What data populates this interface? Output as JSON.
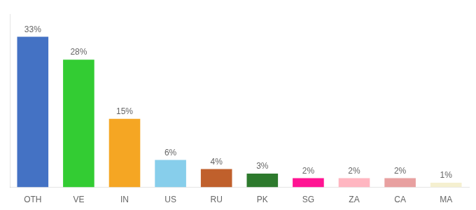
{
  "chart_data": {
    "type": "bar",
    "categories": [
      "OTH",
      "VE",
      "IN",
      "US",
      "RU",
      "PK",
      "SG",
      "ZA",
      "CA",
      "MA"
    ],
    "values": [
      33,
      28,
      15,
      6,
      4,
      3,
      2,
      2,
      2,
      1
    ],
    "value_labels": [
      "33%",
      "28%",
      "15%",
      "6%",
      "4%",
      "3%",
      "2%",
      "2%",
      "2%",
      "1%"
    ],
    "colors": [
      "#4472c4",
      "#33cc33",
      "#f5a623",
      "#87ceeb",
      "#c0602c",
      "#2d7a2d",
      "#ff1493",
      "#ffb6c1",
      "#e8a0a0",
      "#f5f0d0"
    ],
    "ylim": [
      0,
      38
    ],
    "data_labels": true,
    "tick_labels": "x",
    "grid": false
  }
}
